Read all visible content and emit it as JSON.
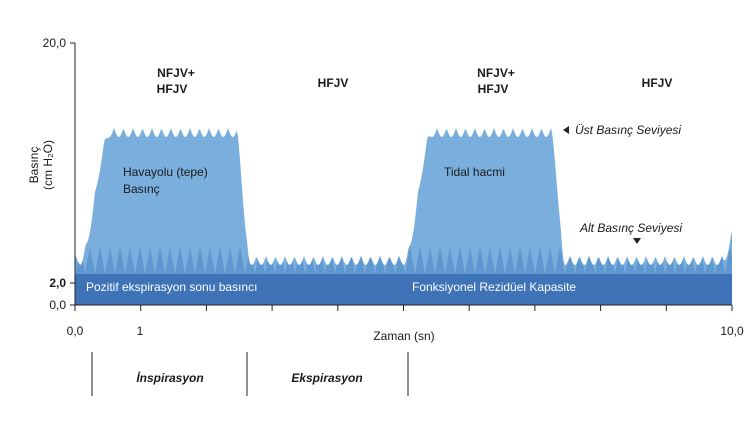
{
  "axes": {
    "y_label": [
      "Basınç",
      "(cm H₂O)"
    ],
    "y_ticks": [
      "20,0",
      "2,0",
      "0,0"
    ],
    "x_ticks": [
      "0,0",
      "1",
      "10,0"
    ],
    "x_label": "Zaman (sn)"
  },
  "phases": [
    [
      "NFJV+",
      "HFJV"
    ],
    [
      "HFJV"
    ],
    [
      "NFJV+",
      "HFJV"
    ],
    [
      "HFJV"
    ]
  ],
  "annotations": {
    "airway": [
      "Havayolu (tepe)",
      "Basınç"
    ],
    "tidal": "Tidal hacmi",
    "upper": "Üst Basınç Seviyesi",
    "lower": "Alt Basınç Seviyesi",
    "peep": "Pozitif ekspirasyon sonu basıncı",
    "frc": "Fonksiyonel Rezidüel Kapasite"
  },
  "periods": [
    "İnspirasyon",
    "Ekspirasyon"
  ]
}
